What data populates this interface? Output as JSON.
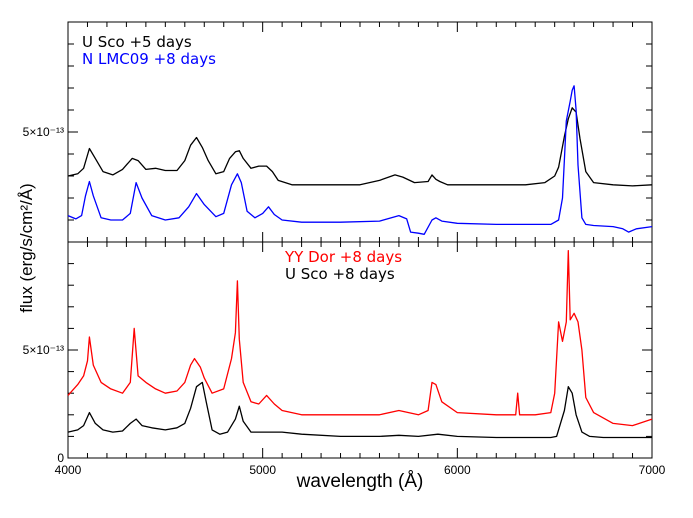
{
  "chart_data": [
    {
      "type": "line",
      "panel": "top",
      "xlim": [
        4000,
        7000
      ],
      "ylabel": "flux (erg/s/cm²/Å)",
      "y_tick_labels": [
        {
          "value": 5,
          "label": "5×10⁻¹³"
        }
      ],
      "y_ticks_minor": 6,
      "series": [
        {
          "name": "U Sco +5 days",
          "color": "#000000",
          "x": [
            4000,
            4050,
            4080,
            4110,
            4140,
            4180,
            4230,
            4280,
            4330,
            4360,
            4400,
            4450,
            4500,
            4560,
            4600,
            4630,
            4660,
            4690,
            4720,
            4760,
            4800,
            4830,
            4860,
            4880,
            4900,
            4940,
            4980,
            5020,
            5050,
            5080,
            5150,
            5300,
            5500,
            5600,
            5680,
            5720,
            5780,
            5850,
            5870,
            5890,
            5910,
            5950,
            6050,
            6200,
            6350,
            6450,
            6500,
            6520,
            6550,
            6570,
            6590,
            6610,
            6630,
            6660,
            6700,
            6800,
            6900,
            7000
          ],
          "y": [
            3.0,
            3.1,
            3.35,
            4.25,
            3.8,
            3.2,
            3.05,
            3.3,
            3.8,
            3.7,
            3.3,
            3.35,
            3.25,
            3.25,
            3.7,
            4.4,
            4.75,
            4.3,
            3.7,
            3.1,
            3.2,
            3.8,
            4.1,
            4.15,
            3.8,
            3.35,
            3.45,
            3.45,
            3.2,
            2.8,
            2.6,
            2.6,
            2.6,
            2.8,
            3.05,
            2.95,
            2.7,
            2.75,
            3.05,
            2.85,
            2.75,
            2.6,
            2.6,
            2.6,
            2.6,
            2.7,
            3.0,
            3.4,
            4.8,
            5.6,
            6.1,
            5.9,
            4.7,
            3.2,
            2.7,
            2.6,
            2.55,
            2.6
          ]
        },
        {
          "name": "N LMC09 +8 days",
          "color": "#0000ff",
          "x": [
            4000,
            4040,
            4070,
            4090,
            4110,
            4130,
            4170,
            4220,
            4280,
            4320,
            4350,
            4380,
            4430,
            4500,
            4570,
            4620,
            4660,
            4700,
            4760,
            4800,
            4840,
            4870,
            4890,
            4920,
            4960,
            5000,
            5030,
            5060,
            5100,
            5200,
            5400,
            5600,
            5700,
            5740,
            5760,
            5800,
            5830,
            5870,
            5890,
            5920,
            6000,
            6200,
            6400,
            6480,
            6520,
            6540,
            6560,
            6580,
            6590,
            6600,
            6610,
            6620,
            6640,
            6660,
            6700,
            6800,
            6850,
            6880,
            6920,
            7000
          ],
          "y": [
            1.2,
            1.05,
            1.2,
            2.1,
            2.75,
            2.1,
            1.1,
            1.0,
            1.0,
            1.3,
            2.7,
            2.0,
            1.2,
            1.0,
            1.1,
            1.6,
            2.2,
            1.7,
            1.15,
            1.3,
            2.6,
            3.1,
            2.7,
            1.4,
            1.1,
            1.3,
            1.6,
            1.25,
            1.0,
            0.9,
            0.9,
            0.95,
            1.2,
            1.05,
            0.45,
            0.4,
            0.35,
            1.0,
            1.1,
            0.95,
            0.85,
            0.8,
            0.8,
            0.8,
            1.0,
            2.0,
            5.5,
            6.4,
            6.9,
            7.1,
            6.0,
            3.5,
            1.1,
            0.8,
            0.75,
            0.7,
            0.6,
            0.45,
            0.6,
            0.7
          ]
        }
      ]
    },
    {
      "type": "line",
      "panel": "bottom",
      "xlabel": "wavelength (Å)",
      "xlim": [
        4000,
        7000
      ],
      "x_tick_labels": [
        {
          "value": 4000,
          "label": "4000"
        },
        {
          "value": 5000,
          "label": "5000"
        },
        {
          "value": 6000,
          "label": "6000"
        },
        {
          "value": 7000,
          "label": "7000"
        }
      ],
      "ylim": [
        0,
        10
      ],
      "y_tick_labels": [
        {
          "value": 0,
          "label": "0"
        },
        {
          "value": 5,
          "label": "5×10⁻¹³"
        }
      ],
      "series": [
        {
          "name": "YY Dor +8 days",
          "color": "#ff0000",
          "x": [
            4000,
            4050,
            4080,
            4100,
            4110,
            4130,
            4170,
            4220,
            4280,
            4320,
            4340,
            4360,
            4400,
            4450,
            4500,
            4560,
            4600,
            4630,
            4650,
            4680,
            4700,
            4740,
            4800,
            4840,
            4860,
            4870,
            4880,
            4900,
            4940,
            4980,
            5020,
            5060,
            5100,
            5200,
            5400,
            5600,
            5700,
            5800,
            5850,
            5870,
            5890,
            5920,
            6000,
            6200,
            6300,
            6310,
            6320,
            6400,
            6480,
            6500,
            6520,
            6540,
            6560,
            6570,
            6580,
            6600,
            6620,
            6640,
            6660,
            6700,
            6800,
            6900,
            7000
          ],
          "y": [
            2.9,
            3.4,
            3.8,
            4.5,
            5.6,
            4.3,
            3.5,
            3.2,
            3.0,
            3.5,
            6.0,
            3.8,
            3.5,
            3.2,
            3.0,
            3.1,
            3.5,
            4.3,
            4.6,
            4.2,
            3.7,
            3.0,
            3.2,
            4.6,
            5.8,
            8.2,
            5.5,
            3.5,
            2.6,
            2.5,
            2.9,
            2.5,
            2.2,
            2.0,
            2.0,
            2.0,
            2.2,
            2.0,
            2.2,
            3.5,
            3.4,
            2.6,
            2.1,
            2.0,
            2.0,
            3.0,
            2.0,
            2.0,
            2.1,
            3.0,
            6.3,
            5.4,
            6.3,
            9.6,
            6.4,
            6.7,
            6.3,
            5.0,
            2.8,
            2.1,
            1.6,
            1.5,
            1.8
          ]
        },
        {
          "name": "U Sco +8 days",
          "color": "#000000",
          "x": [
            4000,
            4050,
            4080,
            4110,
            4140,
            4180,
            4230,
            4280,
            4320,
            4350,
            4380,
            4430,
            4500,
            4560,
            4600,
            4630,
            4660,
            4690,
            4710,
            4740,
            4780,
            4820,
            4860,
            4880,
            4900,
            4940,
            5000,
            5100,
            5200,
            5400,
            5600,
            5700,
            5800,
            5900,
            6000,
            6200,
            6400,
            6480,
            6510,
            6530,
            6550,
            6570,
            6590,
            6610,
            6640,
            6680,
            6750,
            6850,
            7000
          ],
          "y": [
            1.2,
            1.3,
            1.5,
            2.1,
            1.6,
            1.3,
            1.2,
            1.25,
            1.6,
            1.8,
            1.5,
            1.4,
            1.3,
            1.4,
            1.6,
            2.3,
            3.3,
            3.5,
            2.6,
            1.3,
            1.1,
            1.2,
            1.8,
            2.4,
            1.7,
            1.2,
            1.2,
            1.2,
            1.1,
            1.0,
            1.0,
            1.05,
            1.0,
            1.1,
            1.0,
            0.95,
            0.95,
            0.95,
            1.0,
            1.6,
            2.2,
            3.3,
            3.0,
            2.0,
            1.2,
            1.0,
            0.95,
            0.95,
            0.95
          ]
        }
      ]
    }
  ]
}
